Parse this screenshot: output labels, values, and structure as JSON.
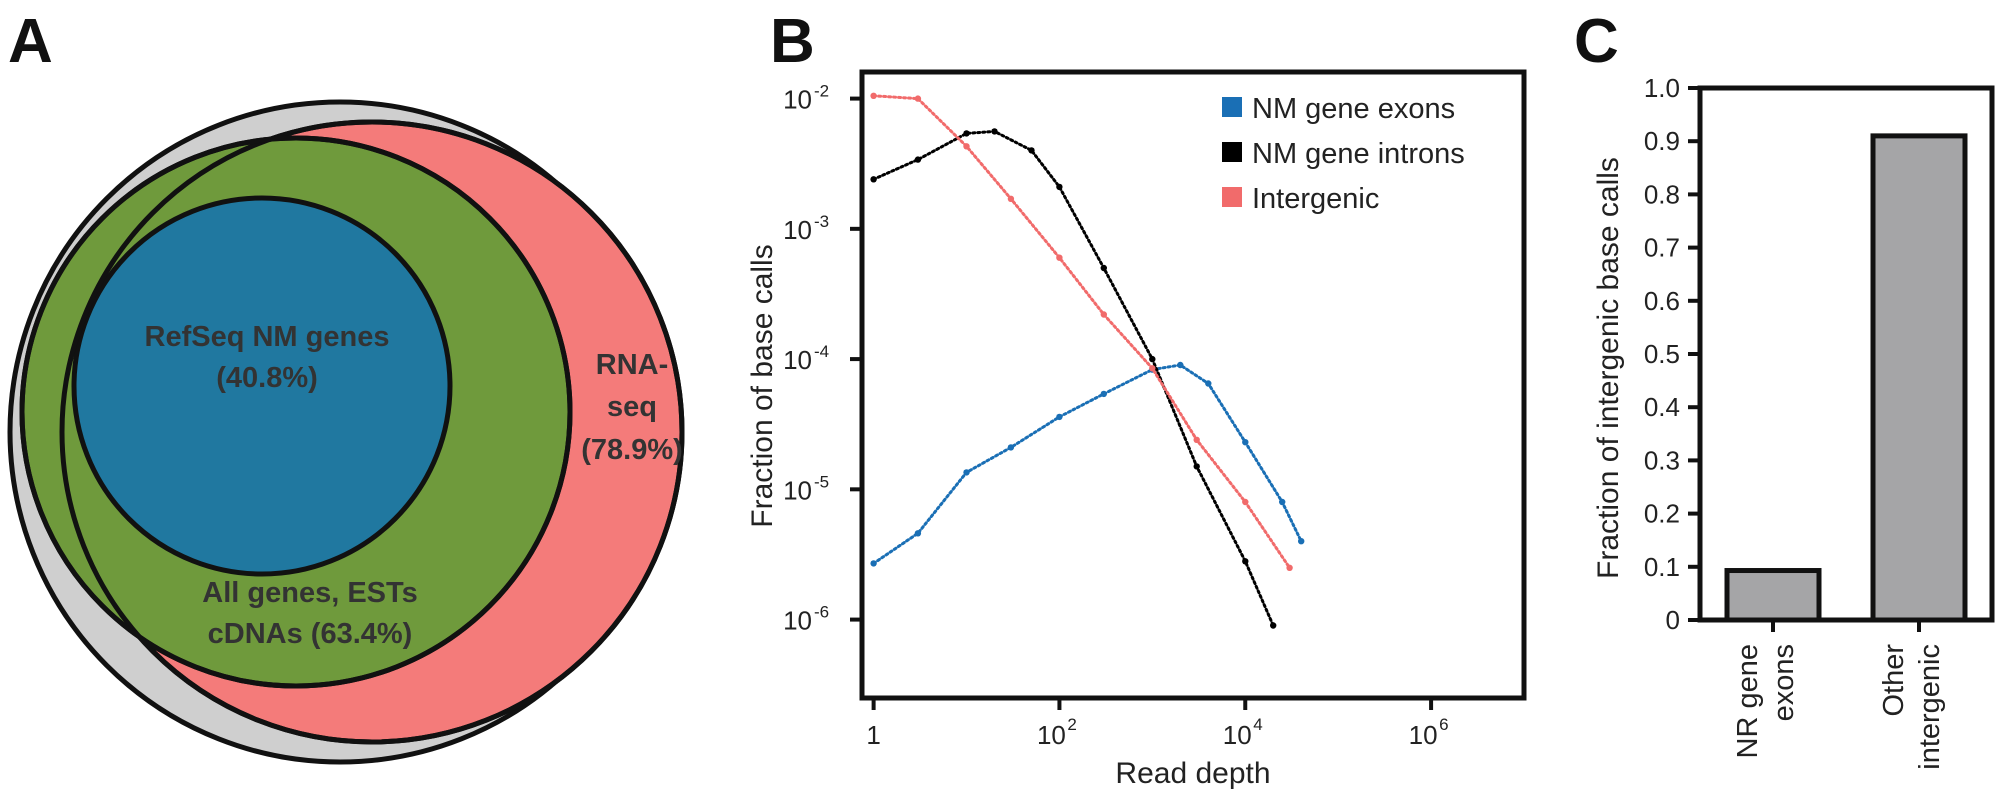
{
  "panels": {
    "a": "A",
    "b": "B",
    "c": "C"
  },
  "colors": {
    "outer": "#cfcfcf",
    "rnaseq": "#f47b7a",
    "all_genes": "#6f9a3c",
    "refseq": "#2078a0",
    "exons": "#1a6fb5",
    "introns": "#000000",
    "intergenic": "#f16b6b",
    "bar": "#a5a5a7"
  },
  "chart_data": [
    {
      "type": "venn",
      "sets": [
        {
          "key": "refseq",
          "lines": [
            "RefSeq NM genes",
            "(40.8%)"
          ],
          "value": 40.8
        },
        {
          "key": "all_genes",
          "lines": [
            "All genes, ESTs",
            "cDNAs (63.4%)"
          ],
          "value": 63.4
        },
        {
          "key": "rnaseq",
          "lines": [
            "RNA-",
            "seq",
            "(78.9%)"
          ],
          "value": 78.9
        }
      ]
    },
    {
      "type": "scatter",
      "xlabel": "Read depth",
      "ylabel": "Fraction of base calls",
      "xscale": "log",
      "yscale": "log",
      "xlim": [
        0.75,
        10000000
      ],
      "ylim": [
        2.5e-07,
        0.016
      ],
      "xticks": [
        {
          "value": 1,
          "base": "1",
          "exp": ""
        },
        {
          "value": 100,
          "base": "10",
          "exp": "2"
        },
        {
          "value": 10000,
          "base": "10",
          "exp": "4"
        },
        {
          "value": 1000000,
          "base": "10",
          "exp": "6"
        }
      ],
      "yticks": [
        {
          "value": 1e-06,
          "base": "10",
          "exp": "-6"
        },
        {
          "value": 1e-05,
          "base": "10",
          "exp": "-5"
        },
        {
          "value": 0.0001,
          "base": "10",
          "exp": "-4"
        },
        {
          "value": 0.001,
          "base": "10",
          "exp": "-3"
        },
        {
          "value": 0.01,
          "base": "10",
          "exp": "-2"
        }
      ],
      "legend_position": "top-right",
      "series": [
        {
          "name": "NM gene exons",
          "color_key": "exons",
          "points": [
            [
              1,
              2.7e-06
            ],
            [
              3,
              4.6e-06
            ],
            [
              10,
              1.35e-05
            ],
            [
              30,
              2.1e-05
            ],
            [
              100,
              3.6e-05
            ],
            [
              300,
              5.4e-05
            ],
            [
              1000,
              8.3e-05
            ],
            [
              2000,
              9e-05
            ],
            [
              4000,
              6.5e-05
            ],
            [
              10000,
              2.3e-05
            ],
            [
              25000,
              8e-06
            ],
            [
              40000,
              4e-06
            ]
          ]
        },
        {
          "name": "NM gene introns",
          "color_key": "introns",
          "points": [
            [
              1,
              0.0024
            ],
            [
              3,
              0.0034
            ],
            [
              10,
              0.0054
            ],
            [
              20,
              0.0056
            ],
            [
              50,
              0.004
            ],
            [
              100,
              0.0021
            ],
            [
              300,
              0.0005
            ],
            [
              1000,
              0.0001
            ],
            [
              3000,
              1.5e-05
            ],
            [
              10000,
              2.8e-06
            ],
            [
              20000,
              9e-07
            ]
          ]
        },
        {
          "name": "Intergenic",
          "color_key": "intergenic",
          "points": [
            [
              1,
              0.0105
            ],
            [
              3,
              0.01
            ],
            [
              10,
              0.0043
            ],
            [
              30,
              0.0017
            ],
            [
              100,
              0.0006
            ],
            [
              300,
              0.00022
            ],
            [
              1000,
              8.5e-05
            ],
            [
              3000,
              2.4e-05
            ],
            [
              10000,
              8e-06
            ],
            [
              30000,
              2.5e-06
            ]
          ]
        }
      ]
    },
    {
      "type": "bar",
      "ylabel": "Fraction of intergenic base calls",
      "ylim": [
        0,
        1.0
      ],
      "yticks": [
        "0",
        "0.1",
        "0.2",
        "0.3",
        "0.4",
        "0.5",
        "0.6",
        "0.7",
        "0.8",
        "0.9",
        "1.0"
      ],
      "categories": [
        {
          "lines": [
            "NR gene",
            "exons"
          ]
        },
        {
          "lines": [
            "Other",
            "intergenic"
          ]
        }
      ],
      "values": [
        0.093,
        0.91
      ]
    }
  ]
}
